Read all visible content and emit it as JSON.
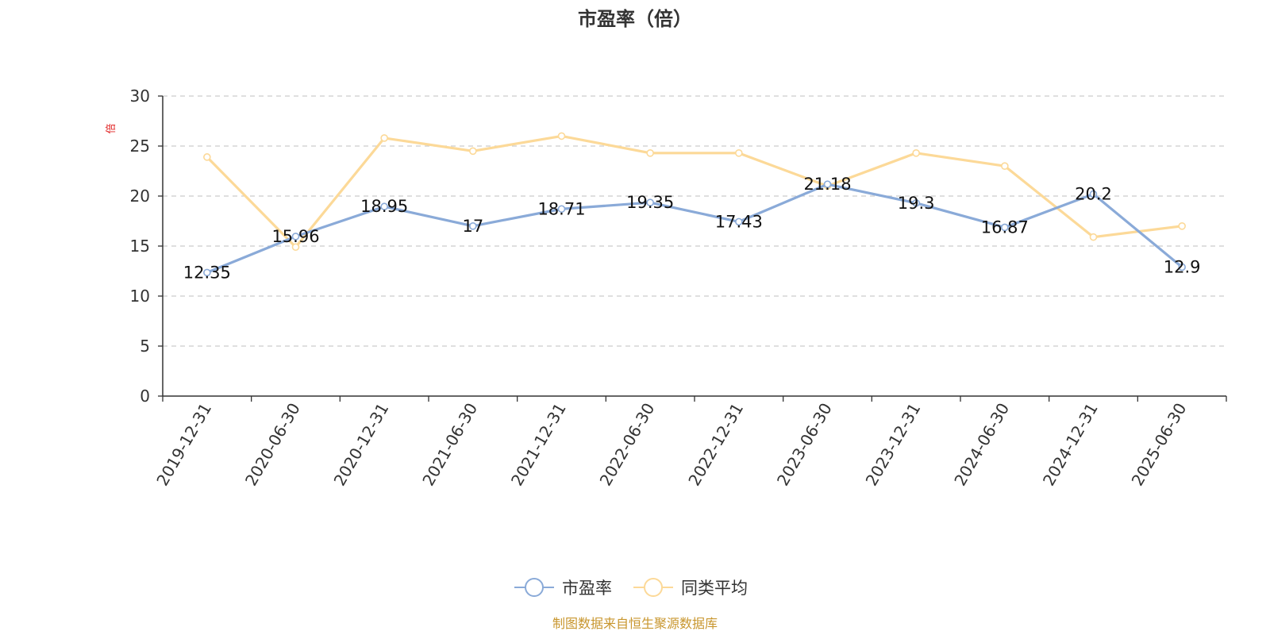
{
  "chart_data": {
    "type": "line",
    "title": "市盈率（倍）",
    "ylabel": "倍",
    "xlabel": "",
    "ylim": [
      0,
      30
    ],
    "yticks": [
      0,
      5,
      10,
      15,
      20,
      25,
      30
    ],
    "grid": true,
    "legend_position": "bottom-center",
    "categories": [
      "2019-12-31",
      "2020-06-30",
      "2020-12-31",
      "2021-06-30",
      "2021-12-31",
      "2022-06-30",
      "2022-12-31",
      "2023-06-30",
      "2023-12-31",
      "2024-06-30",
      "2024-12-31",
      "2025-06-30"
    ],
    "series": [
      {
        "name": "市盈率",
        "color": "#8aaad8",
        "show_labels": true,
        "values": [
          12.35,
          15.96,
          18.95,
          17,
          18.71,
          19.35,
          17.43,
          21.18,
          19.3,
          16.87,
          20.2,
          12.9
        ]
      },
      {
        "name": "同类平均",
        "color": "#fcd998",
        "show_labels": false,
        "values": [
          23.9,
          14.9,
          25.8,
          24.5,
          26.0,
          24.3,
          24.3,
          21.0,
          24.3,
          23.0,
          15.9,
          17.0
        ]
      }
    ],
    "source": "制图数据来自恒生聚源数据库"
  }
}
